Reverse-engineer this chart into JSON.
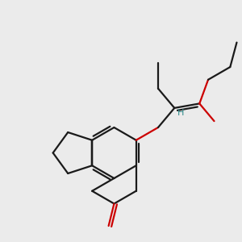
{
  "bg_color": "#ebebeb",
  "bond_color": "#1a1a1a",
  "oxygen_color": "#cc0000",
  "h_color": "#2e8b8b",
  "line_width": 1.6,
  "dbo": 0.012,
  "font_size": 8.5
}
